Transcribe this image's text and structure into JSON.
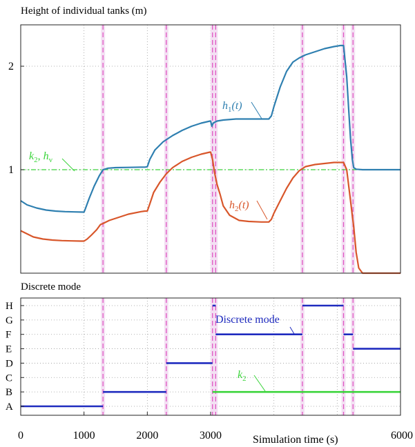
{
  "chart_data": [
    {
      "type": "line",
      "title": "Height of individual tanks (m)",
      "xlim": [
        0,
        6000
      ],
      "ylim": [
        0,
        2.4
      ],
      "y_ticks": [
        "1",
        "2"
      ],
      "x_gridlines": [
        1000,
        2000,
        3000,
        4000,
        5000
      ],
      "y_gridlines": [
        1,
        2
      ],
      "grid": "dotted",
      "switch_times": [
        1300,
        2300,
        3030,
        3080,
        4450,
        5100,
        5250
      ],
      "reference_level": 1,
      "reference_label_k": "k",
      "reference_label_k_sub": "2",
      "reference_label_h": "h",
      "reference_label_h_sub": "v",
      "series": [
        {
          "name_base": "h",
          "name_sub": "1",
          "name_arg": "(t)",
          "x": [
            0,
            100,
            250,
            400,
            550,
            700,
            850,
            1000,
            1020,
            1080,
            1160,
            1240,
            1300,
            1380,
            1500,
            1700,
            1900,
            1960,
            2000,
            2040,
            2120,
            2250,
            2400,
            2550,
            2700,
            2850,
            2990,
            3000,
            3020,
            3040,
            3100,
            3200,
            3400,
            3600,
            3800,
            3920,
            3960,
            4000,
            4100,
            4200,
            4300,
            4400,
            4500,
            4650,
            4800,
            4950,
            5050,
            5100,
            5150,
            5180,
            5210,
            5240,
            5260,
            5300,
            5400,
            5600,
            5800,
            6000
          ],
          "y": [
            0.7,
            0.66,
            0.63,
            0.61,
            0.6,
            0.595,
            0.592,
            0.59,
            0.62,
            0.72,
            0.84,
            0.94,
            1.0,
            1.015,
            1.02,
            1.022,
            1.025,
            1.025,
            1.028,
            1.1,
            1.19,
            1.27,
            1.33,
            1.38,
            1.42,
            1.45,
            1.47,
            1.47,
            1.42,
            1.45,
            1.47,
            1.48,
            1.49,
            1.49,
            1.49,
            1.49,
            1.52,
            1.61,
            1.8,
            1.95,
            2.04,
            2.08,
            2.11,
            2.14,
            2.17,
            2.19,
            2.2,
            2.2,
            1.9,
            1.6,
            1.3,
            1.1,
            1.02,
            1.005,
            1.0,
            1.0,
            1.0,
            1.0
          ],
          "color": "#2e7fb0"
        },
        {
          "name_base": "h",
          "name_sub": "2",
          "name_arg": "(t)",
          "x": [
            0,
            100,
            200,
            350,
            500,
            650,
            800,
            950,
            1000,
            1050,
            1120,
            1200,
            1260,
            1300,
            1400,
            1550,
            1700,
            1900,
            1960,
            2000,
            2040,
            2100,
            2200,
            2300,
            2400,
            2550,
            2700,
            2850,
            2990,
            3000,
            3030,
            3060,
            3100,
            3150,
            3200,
            3300,
            3450,
            3600,
            3800,
            3920,
            3960,
            4000,
            4100,
            4200,
            4300,
            4400,
            4500,
            4650,
            4800,
            4950,
            5050,
            5100,
            5150,
            5200,
            5260,
            5300,
            5340,
            5400,
            5600,
            5800,
            6000
          ],
          "y": [
            0.41,
            0.38,
            0.35,
            0.33,
            0.32,
            0.315,
            0.312,
            0.31,
            0.31,
            0.33,
            0.37,
            0.42,
            0.47,
            0.48,
            0.51,
            0.54,
            0.57,
            0.595,
            0.6,
            0.6,
            0.67,
            0.78,
            0.88,
            0.96,
            1.02,
            1.08,
            1.12,
            1.15,
            1.17,
            1.17,
            1.1,
            0.98,
            0.86,
            0.76,
            0.65,
            0.56,
            0.51,
            0.5,
            0.495,
            0.495,
            0.52,
            0.58,
            0.7,
            0.82,
            0.92,
            0.99,
            1.03,
            1.05,
            1.06,
            1.07,
            1.07,
            1.07,
            1.0,
            0.75,
            0.45,
            0.2,
            0.05,
            0.0,
            0.0,
            0.0,
            0.0
          ],
          "color": "#d8562a"
        }
      ]
    },
    {
      "type": "line",
      "title": "Discrete mode",
      "xlim": [
        0,
        6000
      ],
      "x_tick_labels": [
        "0",
        "1000",
        "2000",
        "3000",
        "6000"
      ],
      "x_tick_values": [
        0,
        1000,
        2000,
        3000,
        6000
      ],
      "x_gridlines": [
        1000,
        2000,
        3000,
        4000,
        5000
      ],
      "xlabel": "Simulation time (s)",
      "mode_levels": [
        "A",
        "B",
        "C",
        "D",
        "E",
        "F",
        "G",
        "H"
      ],
      "switch_times": [
        1300,
        2300,
        3030,
        3080,
        4450,
        5100,
        5250
      ],
      "series": [
        {
          "name": "Discrete mode",
          "segments": [
            {
              "x0": 0,
              "x1": 1300,
              "level": "A"
            },
            {
              "x0": 1300,
              "x1": 2300,
              "level": "B"
            },
            {
              "x0": 2300,
              "x1": 3030,
              "level": "D"
            },
            {
              "x0": 3030,
              "x1": 3080,
              "level": "H"
            },
            {
              "x0": 3080,
              "x1": 4450,
              "level": "F"
            },
            {
              "x0": 4450,
              "x1": 5100,
              "level": "H"
            },
            {
              "x0": 5100,
              "x1": 5250,
              "level": "F"
            },
            {
              "x0": 5250,
              "x1": 6000,
              "level": "E"
            }
          ],
          "color": "#1f2bbf"
        },
        {
          "name_base": "k",
          "name_sub": "2",
          "segments": [
            {
              "x0": 3030,
              "x1": 6000,
              "level": "B"
            }
          ],
          "color": "#3ad43a"
        }
      ]
    }
  ]
}
